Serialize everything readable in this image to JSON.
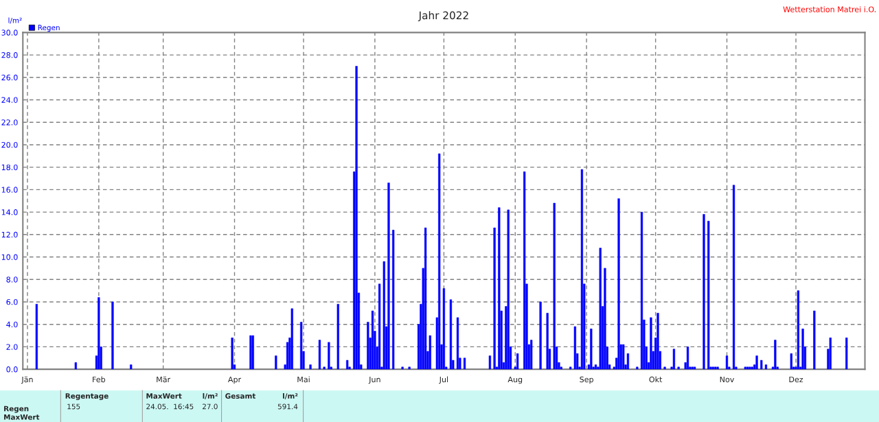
{
  "chart_data": {
    "type": "bar",
    "title": "Jahr 2022",
    "ylabel": "l/m²",
    "legend": "top left",
    "grid": true,
    "annotations": [
      "Wetterstation Matrei i.O.",
      "Regentage",
      "155",
      "MaxWert",
      "l/m²",
      "24.05.  16:45",
      "27.0",
      "Gesamt",
      "l/m²",
      "591.4",
      "Regen",
      "MaxWert"
    ],
    "xlim": [
      "2021-12-30",
      "2022-12-31"
    ],
    "xticks": [
      {
        "value": "2022-01-01",
        "label": "Jän"
      },
      {
        "value": "2022-02-01",
        "label": "Feb"
      },
      {
        "value": "2022-03-01",
        "label": "Mär"
      },
      {
        "value": "2022-04-01",
        "label": "Apr"
      },
      {
        "value": "2022-05-01",
        "label": "Mai"
      },
      {
        "value": "2022-06-01",
        "label": "Jun"
      },
      {
        "value": "2022-07-01",
        "label": "Jul"
      },
      {
        "value": "2022-08-01",
        "label": "Aug"
      },
      {
        "value": "2022-09-01",
        "label": "Sep"
      },
      {
        "value": "2022-10-01",
        "label": "Okt"
      },
      {
        "value": "2022-11-01",
        "label": "Nov"
      },
      {
        "value": "2022-12-01",
        "label": "Dez"
      }
    ],
    "ylim": [
      0,
      30
    ],
    "yticks": [
      {
        "value": 0,
        "label": "0.0"
      },
      {
        "value": 2,
        "label": "2.0"
      },
      {
        "value": 4,
        "label": "4.0"
      },
      {
        "value": 6,
        "label": "6.0"
      },
      {
        "value": 8,
        "label": "8.0"
      },
      {
        "value": 10,
        "label": "10.0"
      },
      {
        "value": 12,
        "label": "12.0"
      },
      {
        "value": 14,
        "label": "14.0"
      },
      {
        "value": 16,
        "label": "16.0"
      },
      {
        "value": 18,
        "label": "18.0"
      },
      {
        "value": 20,
        "label": "20.0"
      },
      {
        "value": 22,
        "label": "22.0"
      },
      {
        "value": 24,
        "label": "24.0"
      },
      {
        "value": 26,
        "label": "26.0"
      },
      {
        "value": 28,
        "label": "28.0"
      },
      {
        "value": 30,
        "label": "30.0"
      }
    ],
    "x": [
      "2022-01-05",
      "2022-01-22",
      "2022-01-31",
      "2022-02-01",
      "2022-02-02",
      "2022-02-07",
      "2022-02-15",
      "2022-03-31",
      "2022-04-01",
      "2022-04-08",
      "2022-04-09",
      "2022-04-19",
      "2022-04-23",
      "2022-04-24",
      "2022-04-25",
      "2022-04-26",
      "2022-04-30",
      "2022-05-01",
      "2022-05-04",
      "2022-05-08",
      "2022-05-10",
      "2022-05-12",
      "2022-05-13",
      "2022-05-16",
      "2022-05-20",
      "2022-05-21",
      "2022-05-23",
      "2022-05-24",
      "2022-05-25",
      "2022-05-26",
      "2022-05-29",
      "2022-05-30",
      "2022-05-31",
      "2022-06-01",
      "2022-06-02",
      "2022-06-03",
      "2022-06-04",
      "2022-06-05",
      "2022-06-06",
      "2022-06-07",
      "2022-06-09",
      "2022-06-13",
      "2022-06-16",
      "2022-06-20",
      "2022-06-21",
      "2022-06-22",
      "2022-06-23",
      "2022-06-24",
      "2022-06-25",
      "2022-06-28",
      "2022-06-29",
      "2022-06-30",
      "2022-07-01",
      "2022-07-02",
      "2022-07-04",
      "2022-07-05",
      "2022-07-07",
      "2022-07-08",
      "2022-07-10",
      "2022-07-21",
      "2022-07-23",
      "2022-07-24",
      "2022-07-25",
      "2022-07-26",
      "2022-07-27",
      "2022-07-28",
      "2022-07-29",
      "2022-07-30",
      "2022-08-01",
      "2022-08-02",
      "2022-08-05",
      "2022-08-06",
      "2022-08-07",
      "2022-08-08",
      "2022-08-12",
      "2022-08-15",
      "2022-08-16",
      "2022-08-18",
      "2022-08-19",
      "2022-08-20",
      "2022-08-21",
      "2022-08-25",
      "2022-08-27",
      "2022-08-28",
      "2022-08-29",
      "2022-08-30",
      "2022-08-31",
      "2022-09-02",
      "2022-09-03",
      "2022-09-04",
      "2022-09-05",
      "2022-09-06",
      "2022-09-07",
      "2022-09-08",
      "2022-09-09",
      "2022-09-10",
      "2022-09-11",
      "2022-09-13",
      "2022-09-14",
      "2022-09-15",
      "2022-09-16",
      "2022-09-17",
      "2022-09-18",
      "2022-09-19",
      "2022-09-23",
      "2022-09-25",
      "2022-09-26",
      "2022-09-27",
      "2022-09-28",
      "2022-09-29",
      "2022-09-30",
      "2022-10-01",
      "2022-10-02",
      "2022-10-03",
      "2022-10-05",
      "2022-10-08",
      "2022-10-09",
      "2022-10-11",
      "2022-10-14",
      "2022-10-15",
      "2022-10-16",
      "2022-10-17",
      "2022-10-18",
      "2022-10-22",
      "2022-10-24",
      "2022-10-25",
      "2022-10-26",
      "2022-10-27",
      "2022-10-28",
      "2022-11-01",
      "2022-11-02",
      "2022-11-04",
      "2022-11-05",
      "2022-11-09",
      "2022-11-10",
      "2022-11-11",
      "2022-11-12",
      "2022-11-13",
      "2022-11-14",
      "2022-11-16",
      "2022-11-18",
      "2022-11-21",
      "2022-11-22",
      "2022-11-23",
      "2022-11-29",
      "2022-11-30",
      "2022-12-01",
      "2022-12-02",
      "2022-12-03",
      "2022-12-04",
      "2022-12-05",
      "2022-12-09",
      "2022-12-15",
      "2022-12-16",
      "2022-12-23"
    ],
    "series": [
      {
        "name": "Regen",
        "color": "#0000ff",
        "values": [
          5.8,
          0.6,
          1.2,
          6.4,
          2.0,
          6.0,
          0.4,
          2.8,
          0.4,
          3.0,
          3.0,
          1.2,
          0.4,
          2.4,
          2.8,
          5.4,
          4.2,
          1.6,
          0.4,
          2.6,
          0.2,
          2.4,
          0.2,
          5.8,
          0.8,
          0.2,
          17.6,
          27.0,
          6.8,
          0.4,
          4.2,
          2.8,
          5.2,
          3.4,
          2.0,
          7.6,
          0.2,
          9.6,
          3.8,
          16.6,
          12.4,
          0.2,
          0.2,
          4.0,
          5.8,
          9.0,
          12.6,
          1.6,
          3.0,
          4.6,
          19.2,
          2.2,
          7.2,
          0.2,
          6.2,
          0.8,
          4.6,
          1.0,
          1.0,
          1.2,
          12.6,
          0.2,
          14.4,
          5.2,
          0.6,
          5.6,
          14.2,
          2.0,
          0.2,
          1.4,
          17.6,
          7.6,
          2.2,
          2.6,
          6.0,
          5.0,
          1.8,
          14.8,
          2.0,
          0.6,
          0.2,
          0.2,
          3.8,
          1.4,
          0.2,
          17.8,
          7.6,
          0.4,
          3.6,
          0.2,
          0.4,
          0.2,
          10.8,
          5.6,
          9.0,
          2.0,
          0.4,
          0.2,
          1.0,
          15.2,
          2.2,
          2.2,
          0.4,
          1.4,
          0.2,
          14.0,
          4.4,
          2.0,
          0.6,
          4.6,
          1.6,
          2.8,
          5.0,
          1.6,
          0.2,
          0.2,
          1.8,
          0.2,
          0.6,
          2.0,
          0.2,
          0.2,
          0.2,
          13.8,
          13.2,
          0.2,
          0.2,
          0.2,
          0.2,
          1.2,
          0.2,
          16.4,
          0.2,
          0.2,
          0.2,
          0.2,
          0.2,
          0.4,
          1.2,
          0.8,
          0.4,
          0.2,
          2.6,
          0.2,
          1.4,
          0.2,
          0.2,
          7.0,
          0.2,
          3.6,
          2.0,
          5.2,
          1.8,
          2.8,
          2.8
        ]
      }
    ]
  }
}
